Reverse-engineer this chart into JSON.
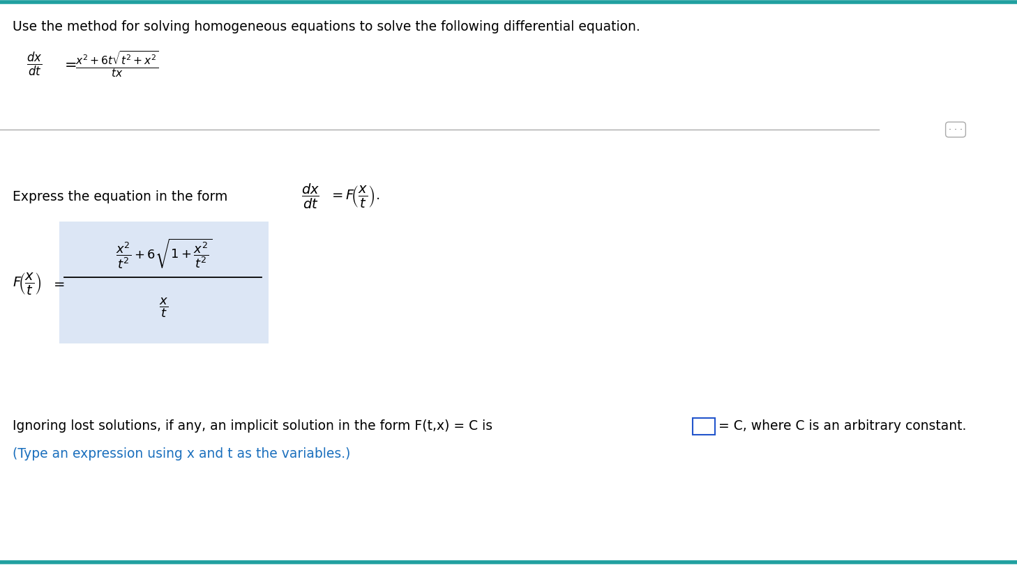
{
  "title_text": "Use the method for solving homogeneous equations to solve the following differential equation.",
  "title_color": "#000000",
  "title_fontsize": 13.5,
  "bg_color": "#ffffff",
  "top_border_color": "#20a0a0",
  "bottom_border_color": "#20a0a0",
  "express_text": "Express the equation in the form",
  "ignoring_text": "Ignoring lost solutions, if any, an implicit solution in the form F(t,x) = C is",
  "ignoring_text2": "= C, where C is an arbitrary constant.",
  "type_text": "(Type an expression using x and t as the variables.)",
  "type_color": "#1a6fbd",
  "body_fontsize": 13.5,
  "highlight_color": "#dce6f5"
}
